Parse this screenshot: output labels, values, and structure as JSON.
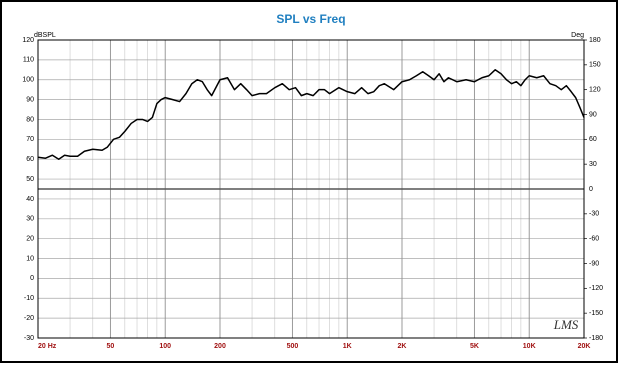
{
  "chart_data": {
    "type": "line",
    "title": "SPL vs Freq",
    "y_label": "dBSPL",
    "y2_label": "Deg",
    "logo": "LMS",
    "x_log": true,
    "grid": true,
    "xlim": [
      20,
      20000
    ],
    "xticks": [
      {
        "value": 20,
        "label": "20 Hz"
      },
      50,
      100,
      200,
      500,
      {
        "value": 1000,
        "label": "1K"
      },
      {
        "value": 2000,
        "label": "2K"
      },
      {
        "value": 5000,
        "label": "5K"
      },
      {
        "value": 10000,
        "label": "10K"
      },
      {
        "value": 20000,
        "label": "20K"
      }
    ],
    "xminorticks": [
      30,
      40,
      60,
      70,
      80,
      90,
      300,
      400,
      600,
      700,
      800,
      900,
      3000,
      4000,
      6000,
      7000,
      8000,
      9000
    ],
    "ylim": [
      -30,
      120
    ],
    "yticks": [
      -30,
      -20,
      -10,
      0,
      10,
      20,
      30,
      40,
      50,
      60,
      70,
      80,
      90,
      100,
      110,
      120
    ],
    "y2lim": [
      -180,
      180
    ],
    "y2ticks": [
      -180,
      -150,
      -120,
      -90,
      -60,
      -30,
      0,
      30,
      60,
      90,
      120,
      150,
      180
    ],
    "x": [
      20,
      22,
      24,
      26,
      28,
      30,
      33,
      36,
      40,
      45,
      48,
      52,
      56,
      60,
      65,
      70,
      75,
      80,
      85,
      90,
      95,
      100,
      110,
      120,
      130,
      140,
      150,
      160,
      170,
      180,
      200,
      220,
      240,
      260,
      280,
      300,
      330,
      360,
      400,
      440,
      480,
      520,
      560,
      600,
      650,
      700,
      750,
      800,
      900,
      1000,
      1100,
      1200,
      1300,
      1400,
      1500,
      1600,
      1800,
      2000,
      2200,
      2400,
      2600,
      2800,
      3000,
      3200,
      3400,
      3600,
      4000,
      4500,
      5000,
      5500,
      6000,
      6500,
      7000,
      7500,
      8000,
      8500,
      9000,
      9500,
      10000,
      11000,
      12000,
      13000,
      14000,
      15000,
      16000,
      17000,
      18000,
      19000,
      20000
    ],
    "series": [
      {
        "name": "SPL",
        "color": "#000000",
        "values": [
          61,
          60.5,
          62,
          60,
          62,
          61.5,
          61.5,
          64,
          65,
          64.5,
          66,
          70,
          71,
          74,
          78,
          80,
          80,
          79,
          81,
          88,
          90,
          91,
          90,
          89,
          93,
          98,
          100,
          99,
          95,
          92,
          100,
          101,
          95,
          98,
          95,
          92,
          93,
          93,
          96,
          98,
          95,
          96,
          92,
          93,
          92,
          95,
          95,
          93,
          96,
          94,
          93,
          96,
          93,
          94,
          97,
          98,
          95,
          99,
          100,
          102,
          104,
          102,
          100,
          103,
          99,
          101,
          99,
          100,
          99,
          101,
          102,
          105,
          103,
          100,
          98,
          99,
          97,
          100,
          102,
          101,
          102,
          98,
          97,
          95,
          97,
          94,
          91,
          86,
          81
        ]
      }
    ]
  }
}
